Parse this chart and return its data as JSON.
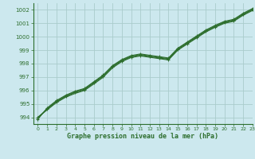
{
  "title": "Graphe pression niveau de la mer (hPa)",
  "bg_color": "#cce8ee",
  "grid_color": "#aacccc",
  "line_color": "#2d6e2d",
  "xlim": [
    -0.5,
    23
  ],
  "ylim": [
    993.5,
    1002.5
  ],
  "yticks": [
    994,
    995,
    996,
    997,
    998,
    999,
    1000,
    1001,
    1002
  ],
  "xticks": [
    0,
    1,
    2,
    3,
    4,
    5,
    6,
    7,
    8,
    9,
    10,
    11,
    12,
    13,
    14,
    15,
    16,
    17,
    18,
    19,
    20,
    21,
    22,
    23
  ],
  "series": [
    [
      994.0,
      994.6,
      995.15,
      995.55,
      995.85,
      996.05,
      996.55,
      997.05,
      997.75,
      998.2,
      998.5,
      998.62,
      998.52,
      998.42,
      998.32,
      999.05,
      999.5,
      999.95,
      1000.4,
      1000.75,
      1001.05,
      1001.2,
      1001.65,
      1002.0
    ],
    [
      994.0,
      994.55,
      995.1,
      995.5,
      995.78,
      996.0,
      996.48,
      996.98,
      997.68,
      998.15,
      998.45,
      998.57,
      998.47,
      998.37,
      998.27,
      999.0,
      999.45,
      999.9,
      1000.35,
      1000.7,
      1001.0,
      1001.15,
      1001.6,
      1001.95
    ],
    [
      993.9,
      994.65,
      995.2,
      995.6,
      995.9,
      996.1,
      996.6,
      997.1,
      997.8,
      998.25,
      998.55,
      998.67,
      998.57,
      998.47,
      998.37,
      999.1,
      999.55,
      1000.0,
      1000.45,
      1000.8,
      1001.1,
      1001.25,
      1001.7,
      1002.05
    ],
    [
      993.85,
      994.7,
      995.25,
      995.65,
      995.95,
      996.15,
      996.65,
      997.15,
      997.85,
      998.3,
      998.6,
      998.72,
      998.62,
      998.52,
      998.42,
      999.15,
      999.6,
      1000.05,
      1000.5,
      1000.85,
      1001.15,
      1001.3,
      1001.75,
      1002.1
    ]
  ]
}
